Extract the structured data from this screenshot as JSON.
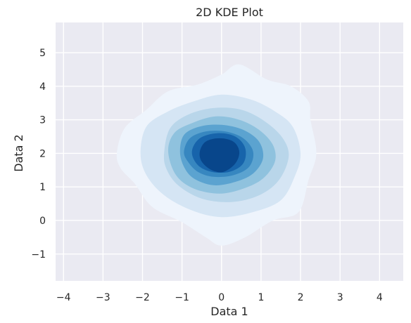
{
  "chart_data": {
    "type": "kde2d",
    "title": "2D KDE Plot",
    "xlabel": "Data 1",
    "ylabel": "Data 2",
    "xlim": [
      -4.2,
      4.6
    ],
    "ylim": [
      -1.8,
      5.9
    ],
    "xticks": [
      -4,
      -3,
      -2,
      -1,
      0,
      1,
      2,
      3,
      4
    ],
    "yticks": [
      -1,
      0,
      1,
      2,
      3,
      4,
      5
    ],
    "xtick_labels": [
      "−4",
      "−3",
      "−2",
      "−1",
      "0",
      "1",
      "2",
      "3",
      "4"
    ],
    "ytick_labels": [
      "−1",
      "0",
      "1",
      "2",
      "3",
      "4",
      "5"
    ],
    "grid": true,
    "style": "darkgrid",
    "colormap": "Blues",
    "levels": [
      {
        "color": "#eef4fc",
        "points": [
          [
            -2.65,
            2.0
          ],
          [
            -2.45,
            2.75
          ],
          [
            -1.9,
            3.3
          ],
          [
            -1.35,
            3.85
          ],
          [
            -0.6,
            4.05
          ],
          [
            0.0,
            4.35
          ],
          [
            0.45,
            4.65
          ],
          [
            1.15,
            4.2
          ],
          [
            1.75,
            4.0
          ],
          [
            2.2,
            3.55
          ],
          [
            2.25,
            3.0
          ],
          [
            2.4,
            2.0
          ],
          [
            2.2,
            1.2
          ],
          [
            1.95,
            0.25
          ],
          [
            1.3,
            0.0
          ],
          [
            0.6,
            -0.5
          ],
          [
            0.0,
            -0.75
          ],
          [
            -0.4,
            -0.5
          ],
          [
            -1.0,
            -0.05
          ],
          [
            -1.75,
            0.4
          ],
          [
            -2.2,
            1.1
          ],
          [
            -2.55,
            1.55
          ]
        ]
      },
      {
        "color": "#d5e5f4",
        "points": [
          [
            -2.05,
            2.0
          ],
          [
            -1.9,
            2.8
          ],
          [
            -1.35,
            3.25
          ],
          [
            -0.7,
            3.55
          ],
          [
            0.0,
            3.75
          ],
          [
            0.75,
            3.6
          ],
          [
            1.35,
            3.25
          ],
          [
            1.8,
            2.8
          ],
          [
            2.0,
            2.0
          ],
          [
            1.85,
            1.3
          ],
          [
            1.5,
            0.6
          ],
          [
            0.8,
            0.25
          ],
          [
            0.0,
            0.1
          ],
          [
            -0.75,
            0.3
          ],
          [
            -1.45,
            0.75
          ],
          [
            -1.9,
            1.35
          ]
        ]
      },
      {
        "color": "#b9d6ea",
        "points": [
          [
            -1.45,
            2.05
          ],
          [
            -1.3,
            2.75
          ],
          [
            -0.85,
            3.15
          ],
          [
            -0.2,
            3.35
          ],
          [
            0.5,
            3.3
          ],
          [
            1.1,
            2.95
          ],
          [
            1.55,
            2.45
          ],
          [
            1.7,
            1.9
          ],
          [
            1.45,
            1.2
          ],
          [
            0.95,
            0.75
          ],
          [
            0.25,
            0.55
          ],
          [
            -0.5,
            0.65
          ],
          [
            -1.1,
            1.05
          ],
          [
            -1.4,
            1.55
          ]
        ]
      },
      {
        "color": "#8fc2de",
        "points": [
          [
            -1.35,
            2.05
          ],
          [
            -1.2,
            2.6
          ],
          [
            -0.75,
            2.9
          ],
          [
            -0.15,
            3.1
          ],
          [
            0.45,
            3.0
          ],
          [
            0.95,
            2.7
          ],
          [
            1.3,
            2.25
          ],
          [
            1.35,
            1.75
          ],
          [
            1.05,
            1.25
          ],
          [
            0.55,
            0.95
          ],
          [
            -0.05,
            0.8
          ],
          [
            -0.7,
            0.95
          ],
          [
            -1.15,
            1.35
          ]
        ]
      },
      {
        "color": "#5ba3d0",
        "points": [
          [
            -1.05,
            2.05
          ],
          [
            -0.95,
            2.55
          ],
          [
            -0.55,
            2.8
          ],
          [
            0.0,
            2.85
          ],
          [
            0.55,
            2.7
          ],
          [
            0.95,
            2.35
          ],
          [
            1.05,
            1.85
          ],
          [
            0.8,
            1.4
          ],
          [
            0.35,
            1.15
          ],
          [
            -0.2,
            1.05
          ],
          [
            -0.7,
            1.25
          ],
          [
            -0.95,
            1.6
          ]
        ]
      },
      {
        "color": "#3787c0",
        "points": [
          [
            -0.95,
            2.05
          ],
          [
            -0.8,
            2.45
          ],
          [
            -0.4,
            2.65
          ],
          [
            0.1,
            2.65
          ],
          [
            0.55,
            2.45
          ],
          [
            0.8,
            2.05
          ],
          [
            0.7,
            1.6
          ],
          [
            0.3,
            1.35
          ],
          [
            -0.2,
            1.3
          ],
          [
            -0.6,
            1.45
          ],
          [
            -0.85,
            1.75
          ]
        ]
      },
      {
        "color": "#1764ab",
        "points": [
          [
            -0.75,
            2.05
          ],
          [
            -0.55,
            2.45
          ],
          [
            -0.1,
            2.6
          ],
          [
            0.35,
            2.5
          ],
          [
            0.6,
            2.15
          ],
          [
            0.55,
            1.7
          ],
          [
            0.2,
            1.45
          ],
          [
            -0.25,
            1.45
          ],
          [
            -0.6,
            1.65
          ]
        ]
      },
      {
        "color": "#08468b",
        "points": [
          [
            -0.55,
            2.05
          ],
          [
            -0.4,
            2.35
          ],
          [
            -0.05,
            2.45
          ],
          [
            0.3,
            2.35
          ],
          [
            0.45,
            2.05
          ],
          [
            0.35,
            1.7
          ],
          [
            0.05,
            1.45
          ],
          [
            -0.25,
            1.5
          ],
          [
            -0.5,
            1.75
          ]
        ]
      }
    ]
  }
}
